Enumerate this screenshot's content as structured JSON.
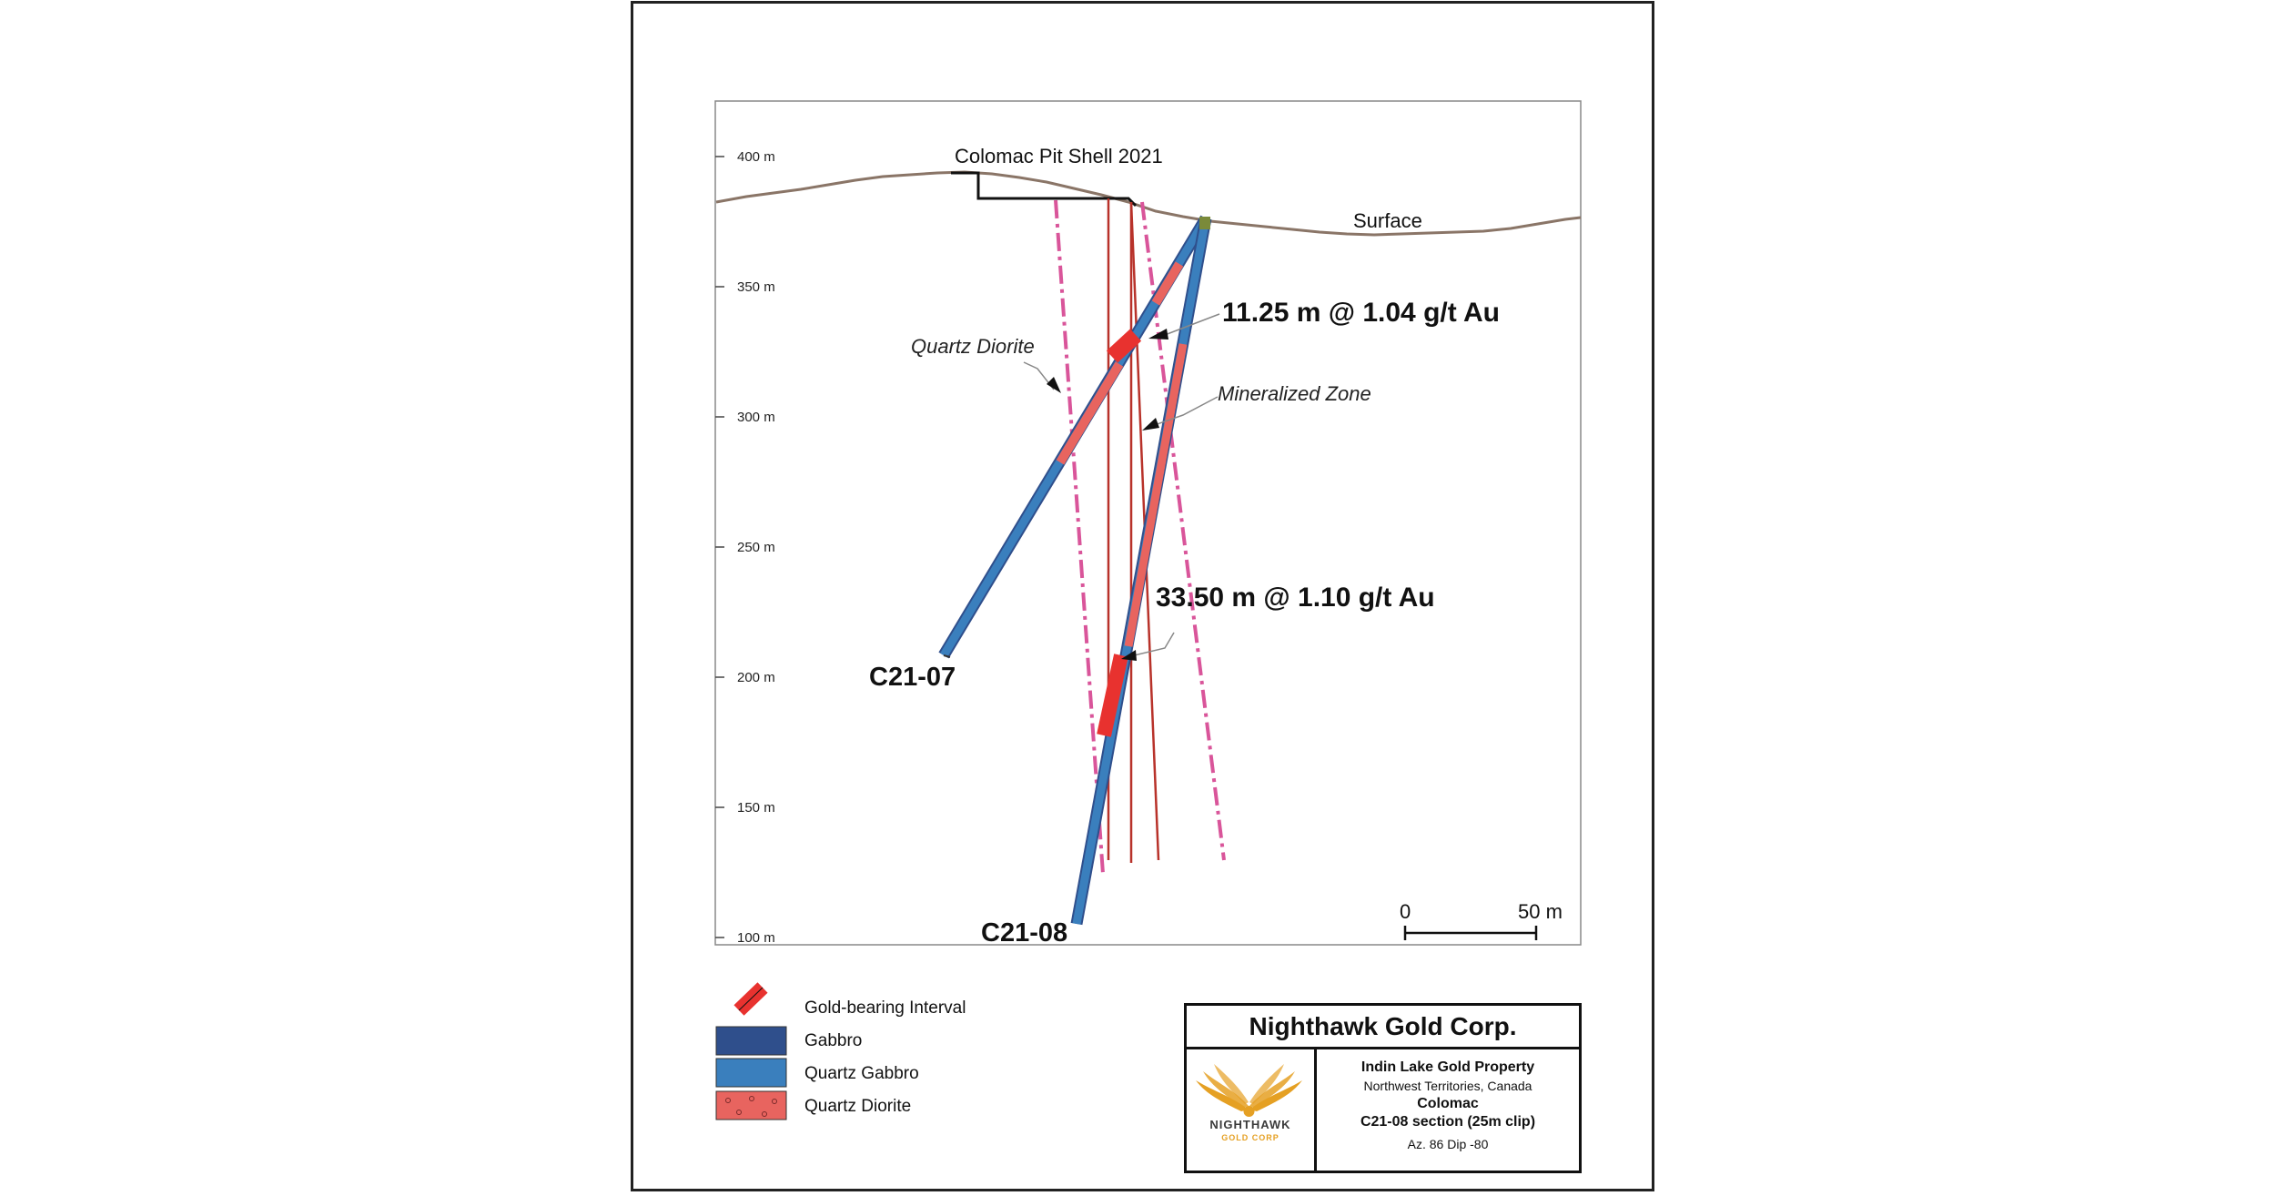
{
  "section": {
    "y_axis": {
      "unit": "m",
      "ticks": [
        {
          "value": 400,
          "label": "400 m"
        },
        {
          "value": 350,
          "label": "350 m"
        },
        {
          "value": 300,
          "label": "300 m"
        },
        {
          "value": 250,
          "label": "250 m"
        },
        {
          "value": 200,
          "label": "200 m"
        },
        {
          "value": 150,
          "label": "150 m"
        },
        {
          "value": 100,
          "label": "100 m"
        }
      ]
    },
    "labels": {
      "pit_shell": "Colomac Pit Shell 2021",
      "surface": "Surface",
      "quartz_diorite": "Quartz Diorite",
      "mineralized_zone": "Mineralized Zone"
    },
    "intercepts": [
      {
        "text": "11.25 m @ 1.04 g/t Au",
        "hole": "C21-07"
      },
      {
        "text": "33.50 m @ 1.10 g/t Au",
        "hole": "C21-08"
      }
    ],
    "holes": [
      {
        "name": "C21-07"
      },
      {
        "name": "C21-08"
      }
    ],
    "scale_bar": {
      "start_label": "0",
      "end_label": "50 m"
    }
  },
  "legend": {
    "items": [
      {
        "label": "Gold-bearing Interval",
        "color": "#e8322f"
      },
      {
        "label": "Gabbro",
        "color": "#2f4f8c"
      },
      {
        "label": "Quartz Gabbro",
        "color": "#3a7fbd"
      },
      {
        "label": "Quartz Diorite",
        "color": "#e8645f"
      }
    ]
  },
  "title_block": {
    "company": "Nighthawk Gold Corp.",
    "logo_word": "NIGHTHAWK",
    "logo_sub": "GOLD CORP",
    "property": "Indin Lake Gold Property",
    "region": "Northwest Territories, Canada",
    "deposit": "Colomac",
    "section": "C21-08 section (25m clip)",
    "orientation": "Az. 86  Dip -80"
  },
  "colors": {
    "surface": "#8a7567",
    "pit_shell": "#111111",
    "gold_interval": "#e8322f",
    "gabbro": "#2f4f8c",
    "quartz_gabbro": "#3a7fbd",
    "quartz_diorite": "#e8645f",
    "diorite_contact": "#d9559a",
    "mineralized_zone": "#b8322a",
    "logo_gold": "#e5a023"
  }
}
